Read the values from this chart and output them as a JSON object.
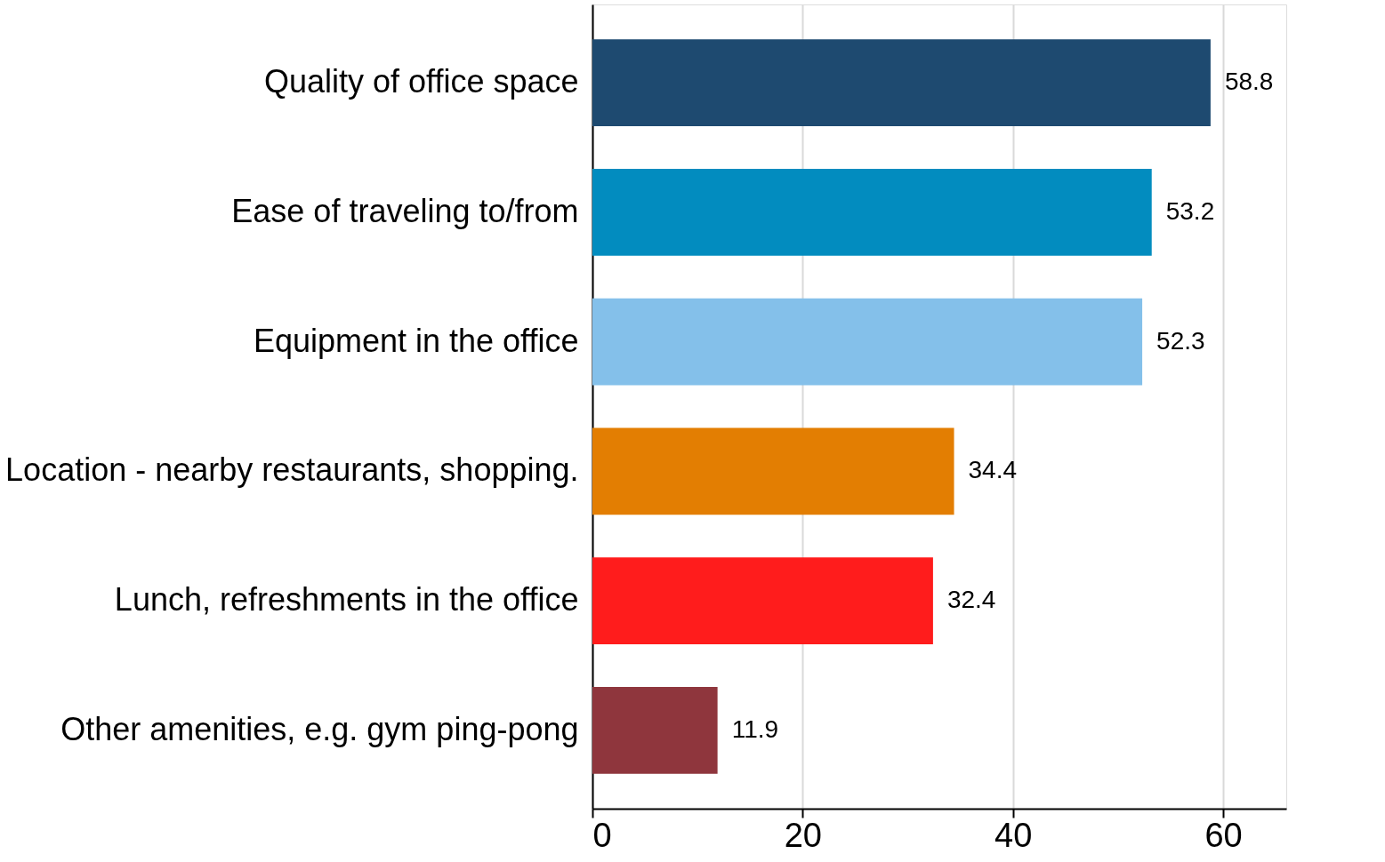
{
  "chart_data": {
    "type": "bar",
    "orientation": "horizontal",
    "categories": [
      "Quality of office space",
      "Ease of traveling to/from",
      "Equipment in the office",
      "Location - nearby restaurants, shopping.",
      "Lunch, refreshments in the office",
      "Other amenities, e.g. gym ping-pong"
    ],
    "values": [
      58.8,
      53.2,
      52.3,
      34.4,
      32.4,
      11.9
    ],
    "colors": [
      "#1e4a70",
      "#028cbf",
      "#84c0ea",
      "#e37e02",
      "#ff1c1c",
      "#8f363d"
    ],
    "xlim": [
      0,
      66
    ],
    "xticks": [
      0,
      20,
      40,
      60
    ],
    "grid": "x",
    "data_labels": true
  }
}
